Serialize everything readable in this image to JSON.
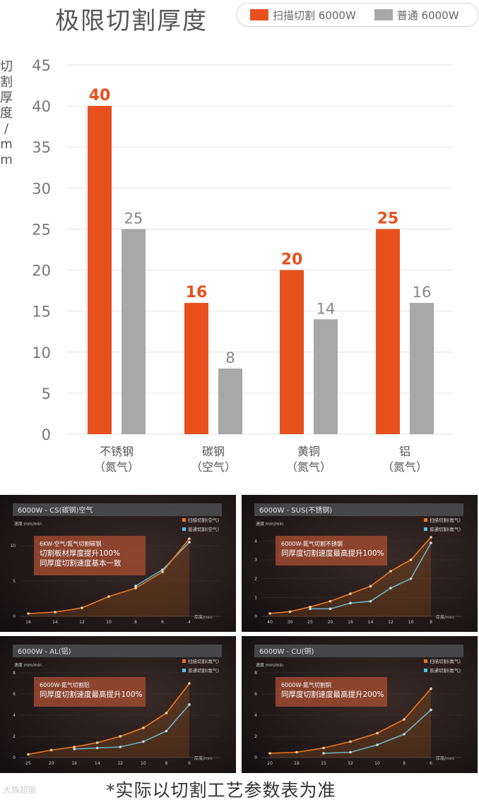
{
  "header": {
    "title": "极限切割厚度"
  },
  "legend": {
    "items": [
      {
        "label": "扫描切割 6000W",
        "color": "#E8501E"
      },
      {
        "label": "普通 6000W",
        "color": "#A8A8A8"
      }
    ]
  },
  "chart_data": [
    {
      "type": "bar",
      "title": "极限切割厚度",
      "ylabel": "切割厚度/mm",
      "ylim": [
        0,
        45
      ],
      "yticks": [
        0,
        5,
        10,
        15,
        20,
        25,
        30,
        35,
        40,
        45
      ],
      "categories": [
        {
          "name": "不锈钢",
          "gas": "（氮气）"
        },
        {
          "name": "碳钢",
          "gas": "（空气）"
        },
        {
          "name": "黄铜",
          "gas": "（氮气）"
        },
        {
          "name": "铝",
          "gas": "（氮气）"
        }
      ],
      "series": [
        {
          "name": "扫描切割 6000W",
          "color": "#E8501E",
          "values": [
            40,
            16,
            20,
            25
          ]
        },
        {
          "name": "普通 6000W",
          "color": "#A8A8A8",
          "values": [
            25,
            8,
            14,
            16
          ]
        }
      ]
    },
    {
      "type": "line",
      "title": "6000W - CS(碳钢)空气",
      "ylabel": "速度 mm/min",
      "xlabel": "厚度/mm",
      "x": [
        16,
        14,
        12,
        10,
        8,
        6,
        4
      ],
      "ylim": [
        0,
        12
      ],
      "yticks": [
        0,
        5,
        10
      ],
      "annotation": [
        "6KW-空气/氮气切割碳钢",
        "切割板材厚度提升100%",
        "同厚度切割速度基本一致"
      ],
      "series": [
        {
          "name": "扫描切割(空气)",
          "color": "#F0781E",
          "values": [
            0.4,
            0.6,
            1.2,
            2.8,
            4.0,
            6.3,
            11.0
          ]
        },
        {
          "name": "普通切割(空气)",
          "color": "#4FC3E8",
          "values": [
            null,
            null,
            null,
            null,
            4.3,
            6.6,
            10.5
          ]
        }
      ]
    },
    {
      "type": "line",
      "title": "6000W - SUS(不锈钢)",
      "ylabel": "速度 mm/min",
      "xlabel": "厚度/mm",
      "x": [
        40,
        30,
        25,
        20,
        16,
        14,
        12,
        10,
        8
      ],
      "ylim": [
        0,
        4.5
      ],
      "yticks": [
        0,
        1,
        2,
        3,
        4
      ],
      "annotation": [
        "6000W-氮气切割不锈钢",
        "同厚度切割速度最高提升100%"
      ],
      "series": [
        {
          "name": "扫描切割(氮气)",
          "color": "#F0781E",
          "values": [
            0.15,
            0.25,
            0.5,
            0.8,
            1.2,
            1.6,
            2.4,
            3.0,
            4.2
          ]
        },
        {
          "name": "普通切割(氮气)",
          "color": "#4FC3E8",
          "values": [
            null,
            null,
            0.4,
            0.4,
            0.7,
            0.8,
            1.5,
            2.0,
            3.9
          ]
        }
      ]
    },
    {
      "type": "line",
      "title": "6000W - AL(铝)",
      "ylabel": "速度 mm/min",
      "xlabel": "厚度/mm",
      "x": [
        25,
        20,
        16,
        14,
        12,
        10,
        8,
        6
      ],
      "ylim": [
        0,
        8
      ],
      "yticks": [
        0,
        2,
        4,
        6,
        8
      ],
      "annotation": [
        "6000W-氮气切割铝",
        "同厚度切割速度最高提升100%"
      ],
      "series": [
        {
          "name": "扫描切割(氮气)",
          "color": "#F0781E",
          "values": [
            0.3,
            0.7,
            1.0,
            1.4,
            2.0,
            2.8,
            4.2,
            7.0
          ]
        },
        {
          "name": "普通切割(氮气)",
          "color": "#4FC3E8",
          "values": [
            null,
            null,
            0.8,
            0.9,
            1.0,
            1.5,
            2.5,
            5.0
          ]
        }
      ]
    },
    {
      "type": "line",
      "title": "6000W - CU(铜)",
      "ylabel": "速度 mm/min",
      "xlabel": "厚度/mm",
      "x": [
        20,
        18,
        15,
        12,
        10,
        8,
        6
      ],
      "ylim": [
        0,
        8
      ],
      "yticks": [
        0,
        2,
        4,
        6,
        8
      ],
      "annotation": [
        "6000W-氮气切割铜",
        "同厚度切割速度最高提升200%"
      ],
      "series": [
        {
          "name": "扫描切割(氮气)",
          "color": "#F0781E",
          "values": [
            0.4,
            0.5,
            0.9,
            1.5,
            2.3,
            3.6,
            6.5
          ]
        },
        {
          "name": "普通切割(氮气)",
          "color": "#4FC3E8",
          "values": [
            null,
            null,
            0.4,
            0.5,
            1.2,
            2.2,
            4.5
          ]
        }
      ]
    }
  ],
  "footer": {
    "note": "*实际以切割工艺参数表为准"
  },
  "watermark": "大族超能"
}
